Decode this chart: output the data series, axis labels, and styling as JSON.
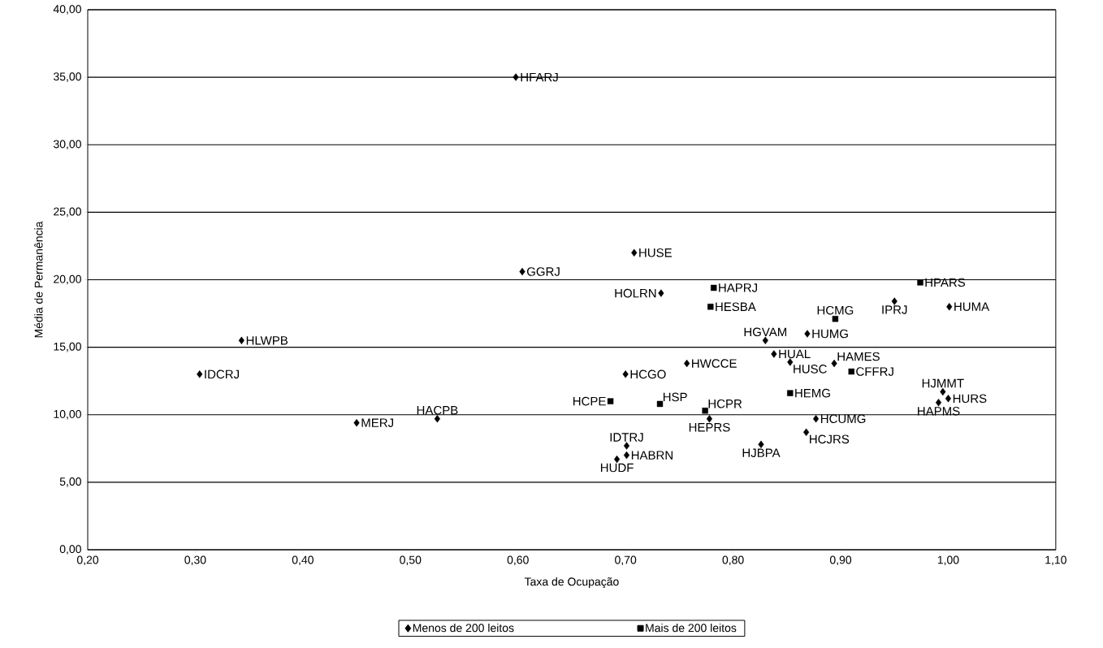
{
  "chart_data": {
    "type": "scatter",
    "xlabel": "Taxa de Ocupação",
    "ylabel": "Média de Permanência",
    "xlim": [
      0.2,
      1.1
    ],
    "xticks": [
      {
        "value": 0.2,
        "label": "0,20"
      },
      {
        "value": 0.3,
        "label": "0,30"
      },
      {
        "value": 0.4,
        "label": "0,40"
      },
      {
        "value": 0.5,
        "label": "0,50"
      },
      {
        "value": 0.6,
        "label": "0,60"
      },
      {
        "value": 0.7,
        "label": "0,70"
      },
      {
        "value": 0.8,
        "label": "0,80"
      },
      {
        "value": 0.9,
        "label": "0,90"
      },
      {
        "value": 1.0,
        "label": "1,00"
      },
      {
        "value": 1.1,
        "label": "1,10"
      }
    ],
    "ylim": [
      0,
      40
    ],
    "yticks": [
      {
        "value": 0,
        "label": "0,00"
      },
      {
        "value": 5,
        "label": "5,00"
      },
      {
        "value": 10,
        "label": "10,00"
      },
      {
        "value": 15,
        "label": "15,00"
      },
      {
        "value": 20,
        "label": "20,00"
      },
      {
        "value": 25,
        "label": "25,00"
      },
      {
        "value": 30,
        "label": "30,00"
      },
      {
        "value": 35,
        "label": "35,00"
      },
      {
        "value": 40,
        "label": "40,00"
      }
    ],
    "grid": "y",
    "legend": "bottom",
    "series": [
      {
        "name": "Menos de 200 leitos",
        "color": "#000000",
        "marker": "diamond",
        "x": [
          0.598,
          0.604,
          0.708,
          0.733,
          0.95,
          1.001,
          0.343,
          0.304,
          0.83,
          0.869,
          0.838,
          0.853,
          0.894,
          0.757,
          0.7,
          0.995,
          1.0,
          0.991,
          0.778,
          0.877,
          0.868,
          0.826,
          0.701,
          0.701,
          0.692,
          0.45,
          0.525
        ],
        "values": [
          35.0,
          20.6,
          22.0,
          19.0,
          18.4,
          18.0,
          15.5,
          13.0,
          15.5,
          16.0,
          14.5,
          13.9,
          13.8,
          13.8,
          13.0,
          11.7,
          11.2,
          10.9,
          9.7,
          9.7,
          8.7,
          7.8,
          7.7,
          7.0,
          6.7,
          9.4,
          9.7
        ]
      },
      {
        "name": "Mais de 200 leitos",
        "color": "#000000",
        "marker": "square",
        "x": [
          0.782,
          0.779,
          0.974,
          0.895,
          0.91,
          0.853,
          0.686,
          0.732,
          0.774
        ],
        "values": [
          19.4,
          18.0,
          19.8,
          17.1,
          13.2,
          11.6,
          11.0,
          10.8,
          10.3
        ]
      }
    ],
    "annotations": [
      {
        "text": "HFARJ",
        "x": 0.598,
        "y": 35.0
      },
      {
        "text": "GGRJ",
        "x": 0.604,
        "y": 20.6
      },
      {
        "text": "HUSE",
        "x": 0.708,
        "y": 22.0
      },
      {
        "text": "HOLRN",
        "x": 0.733,
        "y": 19.0
      },
      {
        "text": "IPRJ",
        "x": 0.95,
        "y": 18.4
      },
      {
        "text": "HUMA",
        "x": 1.001,
        "y": 18.0
      },
      {
        "text": "HLWPB",
        "x": 0.343,
        "y": 15.5
      },
      {
        "text": "IDCRJ",
        "x": 0.304,
        "y": 13.0
      },
      {
        "text": "HGVAM",
        "x": 0.83,
        "y": 15.5
      },
      {
        "text": "HUMG",
        "x": 0.869,
        "y": 16.0
      },
      {
        "text": "HUAL",
        "x": 0.838,
        "y": 14.5
      },
      {
        "text": "HUSC",
        "x": 0.853,
        "y": 13.9
      },
      {
        "text": "HAMES",
        "x": 0.894,
        "y": 13.8
      },
      {
        "text": "HWCCE",
        "x": 0.757,
        "y": 13.8
      },
      {
        "text": "HCGO",
        "x": 0.7,
        "y": 13.0
      },
      {
        "text": "HJMMT",
        "x": 0.995,
        "y": 11.7
      },
      {
        "text": "HURS",
        "x": 1.0,
        "y": 11.2
      },
      {
        "text": "HAPMS",
        "x": 0.991,
        "y": 10.9
      },
      {
        "text": "HEPRS",
        "x": 0.778,
        "y": 9.7
      },
      {
        "text": "HCUMG",
        "x": 0.877,
        "y": 9.7
      },
      {
        "text": "HCJRS",
        "x": 0.868,
        "y": 8.7
      },
      {
        "text": "HJBPA",
        "x": 0.826,
        "y": 7.8
      },
      {
        "text": "IDTRJ",
        "x": 0.701,
        "y": 7.7
      },
      {
        "text": "HABRN",
        "x": 0.701,
        "y": 7.0
      },
      {
        "text": "HUDF",
        "x": 0.692,
        "y": 6.7
      },
      {
        "text": "MERJ",
        "x": 0.45,
        "y": 9.4
      },
      {
        "text": "HACPB",
        "x": 0.525,
        "y": 9.7
      },
      {
        "text": "HAPRJ",
        "x": 0.782,
        "y": 19.4
      },
      {
        "text": "HESBA",
        "x": 0.779,
        "y": 18.0
      },
      {
        "text": "HPARS",
        "x": 0.974,
        "y": 19.8
      },
      {
        "text": "HCMG",
        "x": 0.895,
        "y": 17.1
      },
      {
        "text": "CFFRJ",
        "x": 0.91,
        "y": 13.2
      },
      {
        "text": "HEMG",
        "x": 0.853,
        "y": 11.6
      },
      {
        "text": "HCPE",
        "x": 0.686,
        "y": 11.0
      },
      {
        "text": "HSP",
        "x": 0.732,
        "y": 10.8
      },
      {
        "text": "HCPR",
        "x": 0.774,
        "y": 10.3
      }
    ]
  }
}
